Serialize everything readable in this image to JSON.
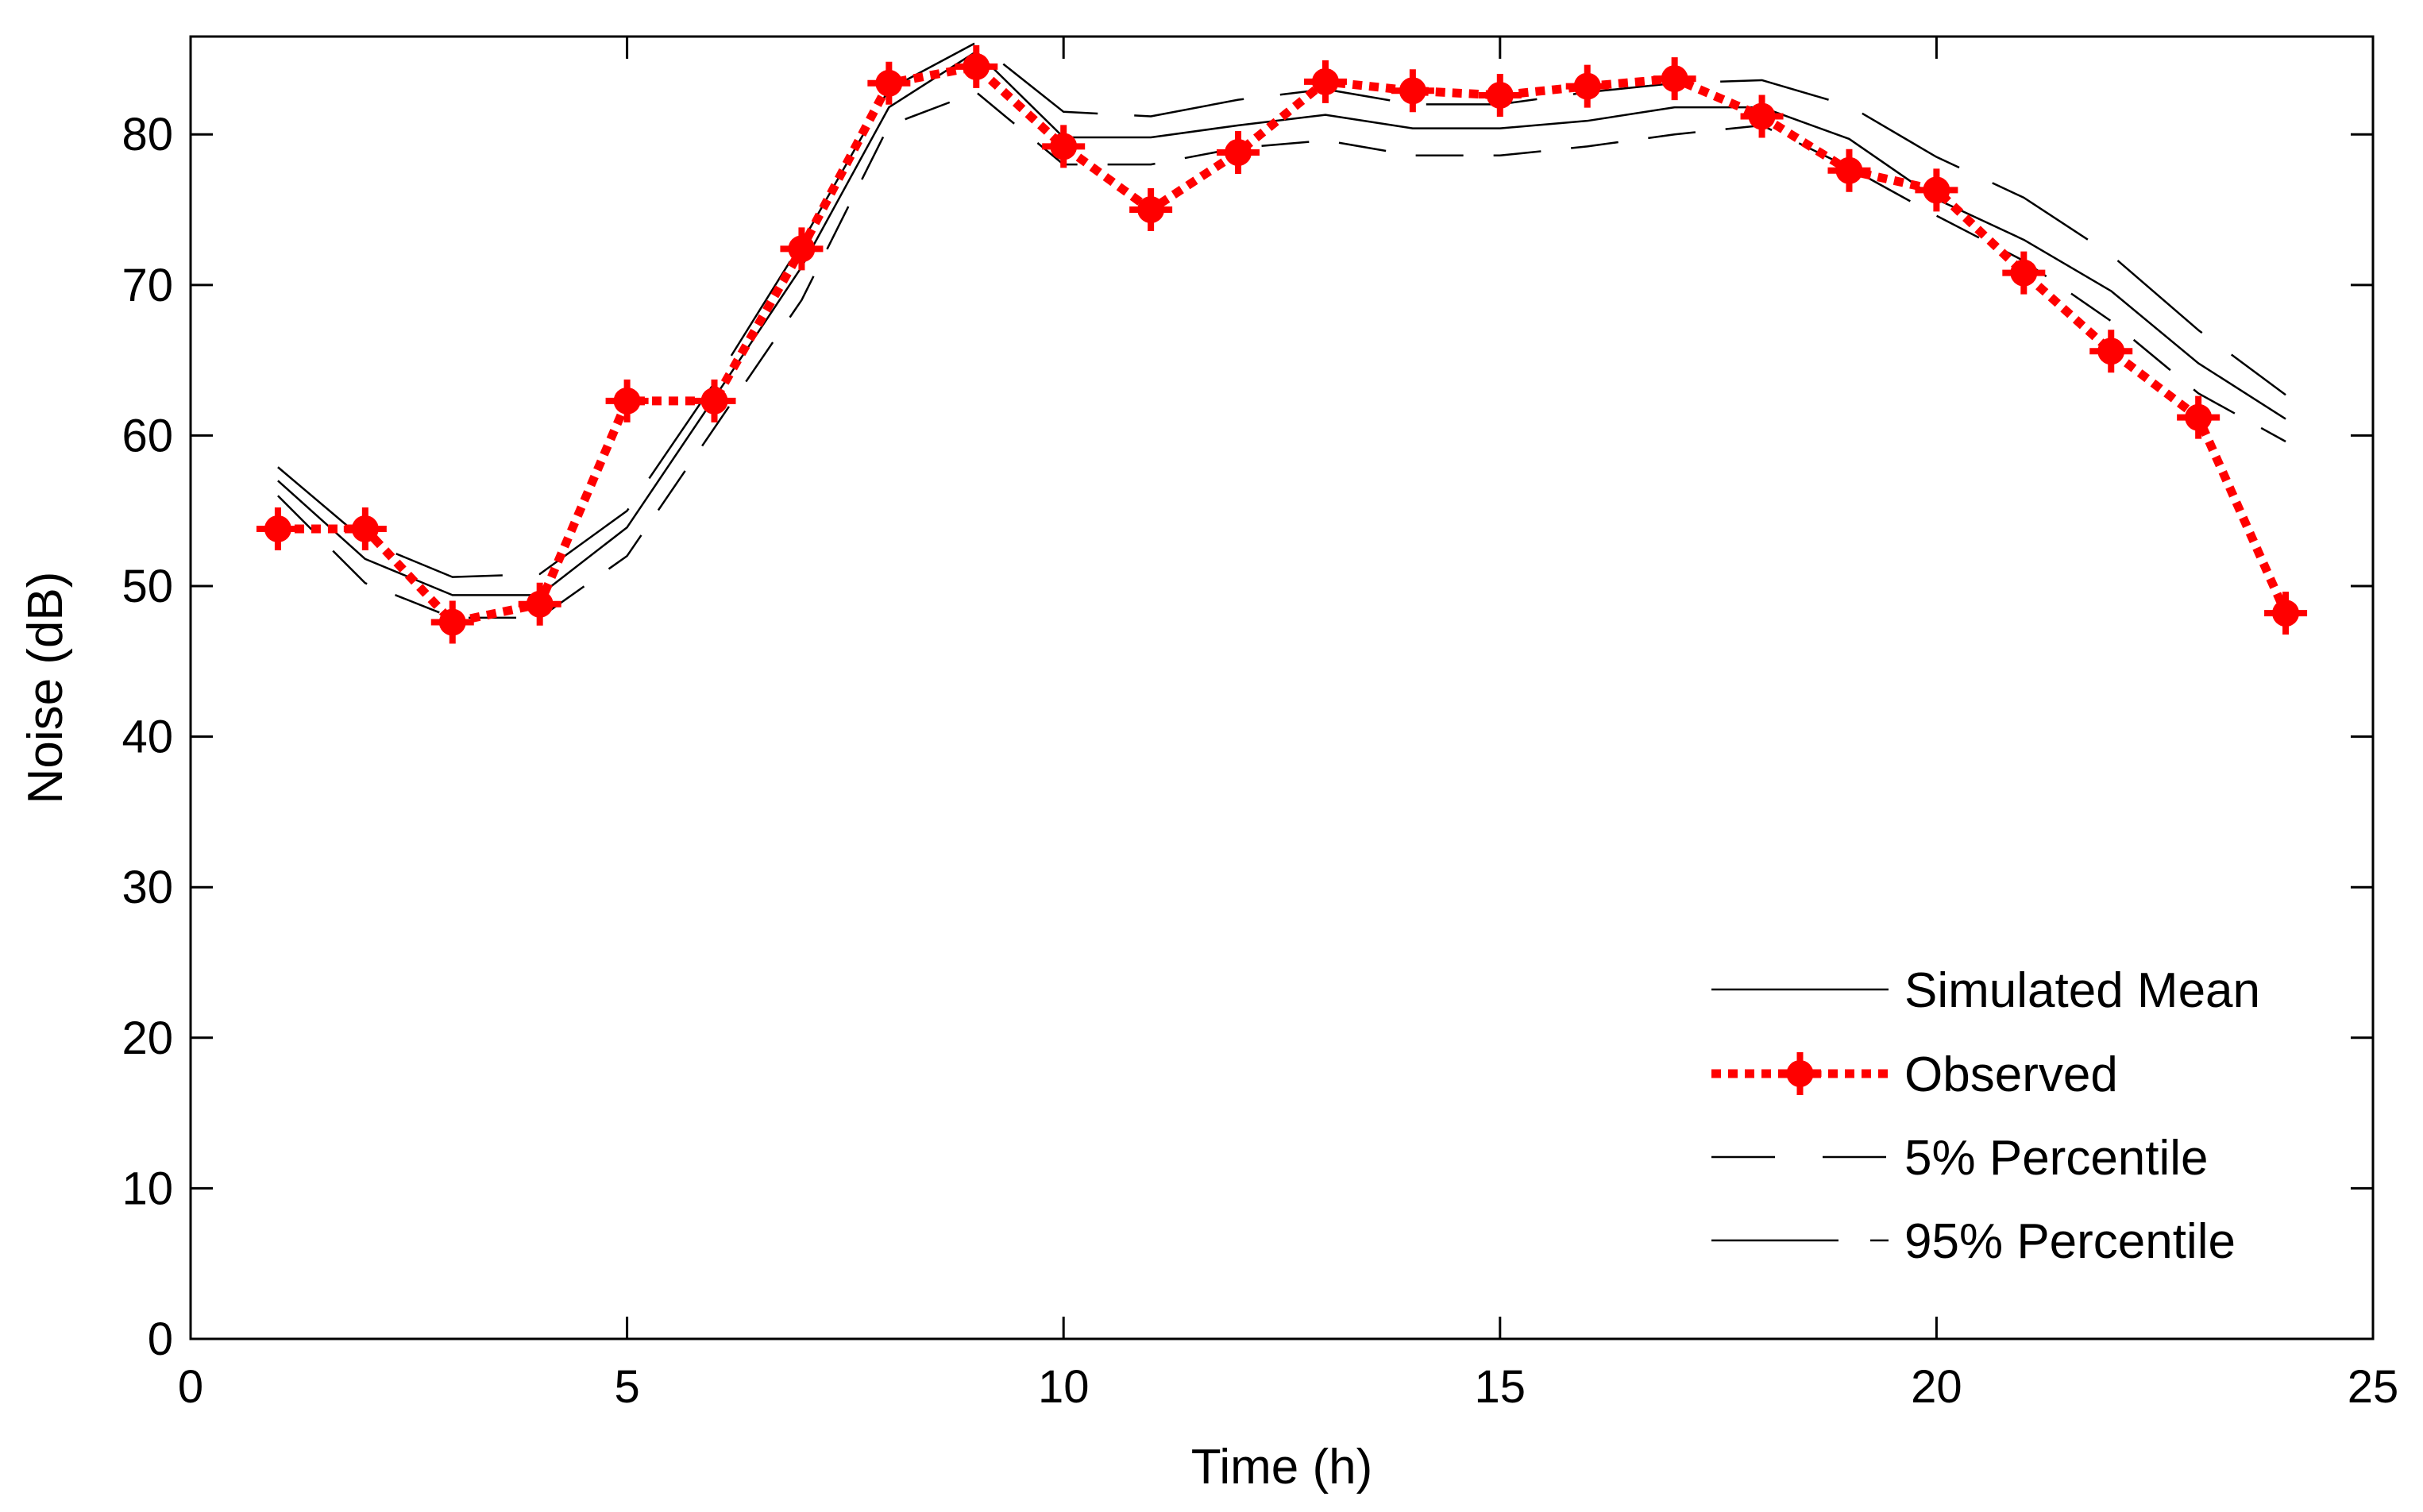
{
  "chart_data": {
    "type": "line",
    "title": "",
    "xlabel": "Time (h)",
    "ylabel": "Noise (dB)",
    "xlim": [
      0,
      25
    ],
    "ylim": [
      0,
      86.5
    ],
    "xticks": [
      0,
      5,
      10,
      15,
      20,
      25
    ],
    "yticks": [
      0,
      10,
      20,
      30,
      40,
      50,
      60,
      70,
      80
    ],
    "grid": false,
    "legend_position": "bottom-right",
    "x": [
      1,
      2,
      3,
      4,
      5,
      6,
      7,
      8,
      9,
      10,
      11,
      12,
      13,
      14,
      15,
      16,
      17,
      18,
      19,
      20,
      21,
      22,
      23,
      24
    ],
    "series": [
      {
        "name": "Simulated Mean",
        "style": "solid",
        "color": "#000000",
        "values": [
          57.0,
          51.8,
          49.4,
          49.4,
          53.9,
          62.5,
          71.2,
          81.8,
          85.5,
          79.8,
          79.8,
          80.6,
          81.3,
          80.4,
          80.4,
          80.9,
          81.8,
          81.8,
          79.7,
          75.7,
          73.0,
          69.6,
          64.8,
          61.1
        ]
      },
      {
        "name": "Observed",
        "style": "dotted-marker",
        "color": "#ff0000",
        "values": [
          53.8,
          53.8,
          47.6,
          48.8,
          62.3,
          62.3,
          72.4,
          83.4,
          84.5,
          79.2,
          75.0,
          78.8,
          83.5,
          82.9,
          82.6,
          83.2,
          83.7,
          81.2,
          77.6,
          76.3,
          70.8,
          65.6,
          61.2,
          48.2
        ]
      },
      {
        "name": "5% Percentile",
        "style": "dashed",
        "color": "#000000",
        "values": [
          56.0,
          50.2,
          47.9,
          47.9,
          52.0,
          60.5,
          69.0,
          80.6,
          82.8,
          78.0,
          78.0,
          79.1,
          79.6,
          78.6,
          78.6,
          79.2,
          80.0,
          80.6,
          77.8,
          74.6,
          71.6,
          67.6,
          62.8,
          59.6
        ]
      },
      {
        "name": "95% Percentile",
        "style": "long-dash",
        "color": "#000000",
        "values": [
          57.9,
          53.0,
          50.6,
          50.8,
          55.0,
          63.5,
          72.8,
          83.0,
          86.1,
          81.5,
          81.2,
          82.3,
          83.0,
          82.0,
          82.0,
          82.8,
          83.4,
          83.6,
          81.9,
          78.5,
          75.8,
          72.0,
          67.0,
          62.7
        ]
      }
    ]
  }
}
